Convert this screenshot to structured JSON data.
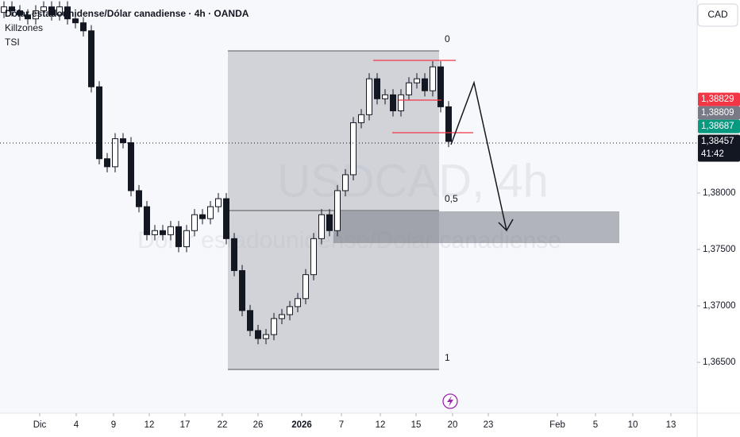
{
  "chart_data": {
    "type": "candlestick",
    "title": "Dólar estadounidense/Dólar canadiense · 4h · OANDA",
    "indicators": [
      "Killzones",
      "TSI"
    ],
    "watermark": "USDCAD, 4h",
    "watermark_subtitle": "Dólar estadounidense/Dólar canadiense",
    "currency": "CAD",
    "fib_labels": [
      "0",
      "0,5",
      "1"
    ],
    "open": [
      1.396,
      1.39649,
      1.39614,
      1.39578,
      1.39543,
      1.39614,
      1.39649,
      1.39578,
      1.39649,
      1.39543,
      1.39508,
      1.39437,
      1.38941,
      1.38304,
      1.38233,
      1.38481,
      1.38446,
      1.38021,
      1.37879,
      1.37631,
      1.37667,
      1.37631,
      1.37702,
      1.37525,
      1.37667,
      1.37808,
      1.37773,
      1.37879,
      1.3795,
      1.37596,
      1.37313,
      1.36959,
      1.36782,
      1.36711,
      1.36746,
      1.36888,
      1.36923,
      1.36994,
      1.37065,
      1.37277,
      1.37596,
      1.37808,
      1.37667,
      1.38021,
      1.38162,
      1.38623,
      1.38694,
      1.39012,
      1.38835,
      1.3887,
      1.38728,
      1.3887,
      1.38976,
      1.39012,
      1.38906,
      1.39118,
      1.38764
    ],
    "high": [
      1.39699,
      1.39699,
      1.39664,
      1.39628,
      1.39664,
      1.39699,
      1.39699,
      1.39699,
      1.39699,
      1.39593,
      1.39558,
      1.39487,
      1.38991,
      1.38354,
      1.38531,
      1.38531,
      1.38496,
      1.38071,
      1.37929,
      1.37717,
      1.37717,
      1.37752,
      1.37752,
      1.37717,
      1.37858,
      1.37858,
      1.37929,
      1.38,
      1.38,
      1.37646,
      1.37363,
      1.37009,
      1.36832,
      1.36796,
      1.36938,
      1.36973,
      1.37044,
      1.37115,
      1.37327,
      1.37646,
      1.37858,
      1.37858,
      1.38071,
      1.38212,
      1.38673,
      1.38744,
      1.39062,
      1.39062,
      1.3892,
      1.3892,
      1.3892,
      1.39026,
      1.39062,
      1.39062,
      1.39168,
      1.39168,
      1.38814
    ],
    "low": [
      1.3955,
      1.39564,
      1.39528,
      1.39493,
      1.39493,
      1.39564,
      1.39528,
      1.39528,
      1.39493,
      1.39458,
      1.39387,
      1.38891,
      1.38254,
      1.38183,
      1.38183,
      1.38396,
      1.37971,
      1.37829,
      1.37581,
      1.37581,
      1.37581,
      1.37581,
      1.37475,
      1.37475,
      1.37617,
      1.37723,
      1.37723,
      1.37829,
      1.37546,
      1.37263,
      1.36909,
      1.36732,
      1.36661,
      1.36661,
      1.36696,
      1.36838,
      1.36873,
      1.36944,
      1.37015,
      1.37227,
      1.37546,
      1.37617,
      1.37617,
      1.37971,
      1.38112,
      1.38573,
      1.38644,
      1.38785,
      1.38785,
      1.38678,
      1.38678,
      1.3882,
      1.38926,
      1.38856,
      1.38856,
      1.38714,
      1.38407
    ],
    "close": [
      1.39649,
      1.39614,
      1.39578,
      1.39543,
      1.39614,
      1.39649,
      1.39578,
      1.39649,
      1.39543,
      1.39508,
      1.39437,
      1.38941,
      1.38304,
      1.38233,
      1.38481,
      1.38446,
      1.38021,
      1.37879,
      1.37631,
      1.37667,
      1.37631,
      1.37702,
      1.37525,
      1.37667,
      1.37808,
      1.37773,
      1.37879,
      1.3795,
      1.37596,
      1.37313,
      1.36959,
      1.36782,
      1.36711,
      1.36746,
      1.36888,
      1.36923,
      1.36994,
      1.37065,
      1.37277,
      1.37596,
      1.37808,
      1.37667,
      1.38021,
      1.38162,
      1.38623,
      1.38694,
      1.39012,
      1.38835,
      1.3887,
      1.38728,
      1.3887,
      1.38976,
      1.39012,
      1.38906,
      1.39118,
      1.38764,
      1.38457
    ],
    "color": "#131722",
    "xlim": [
      -0.5,
      87.3
    ],
    "xticks": [
      {
        "value": 4.5,
        "label": "Dic"
      },
      {
        "value": 9.1,
        "label": "4"
      },
      {
        "value": 13.8,
        "label": "9"
      },
      {
        "value": 18.3,
        "label": "12"
      },
      {
        "value": 22.8,
        "label": "17"
      },
      {
        "value": 27.5,
        "label": "22"
      },
      {
        "value": 32,
        "label": "26"
      },
      {
        "value": 37.5,
        "label": "2026"
      },
      {
        "value": 42.5,
        "label": "7"
      },
      {
        "value": 47.4,
        "label": "12"
      },
      {
        "value": 51.9,
        "label": "15"
      },
      {
        "value": 56.5,
        "label": "20"
      },
      {
        "value": 61,
        "label": "23"
      },
      {
        "value": 69.7,
        "label": "Feb"
      },
      {
        "value": 74.5,
        "label": "5"
      },
      {
        "value": 79.2,
        "label": "10"
      },
      {
        "value": 84,
        "label": "13"
      }
    ],
    "ylim": [
      1.3605,
      1.3971
    ],
    "yticks": [
      {
        "value": 1.365,
        "label": "1,36500"
      },
      {
        "value": 1.37,
        "label": "1,37000"
      },
      {
        "value": 1.375,
        "label": "1,37500"
      },
      {
        "value": 1.38,
        "label": "1,38000"
      }
    ],
    "price_tags": [
      {
        "value": 1.38829,
        "label": "1,38829",
        "color": "#f23645"
      },
      {
        "value": 1.38809,
        "label": "1,38809",
        "color": "#787b86"
      },
      {
        "value": 1.38687,
        "label": "1,38687",
        "color": "#089981"
      },
      {
        "value": 1.38457,
        "label": "1,38457",
        "color": "#131722"
      }
    ],
    "countdown": "41:42"
  }
}
